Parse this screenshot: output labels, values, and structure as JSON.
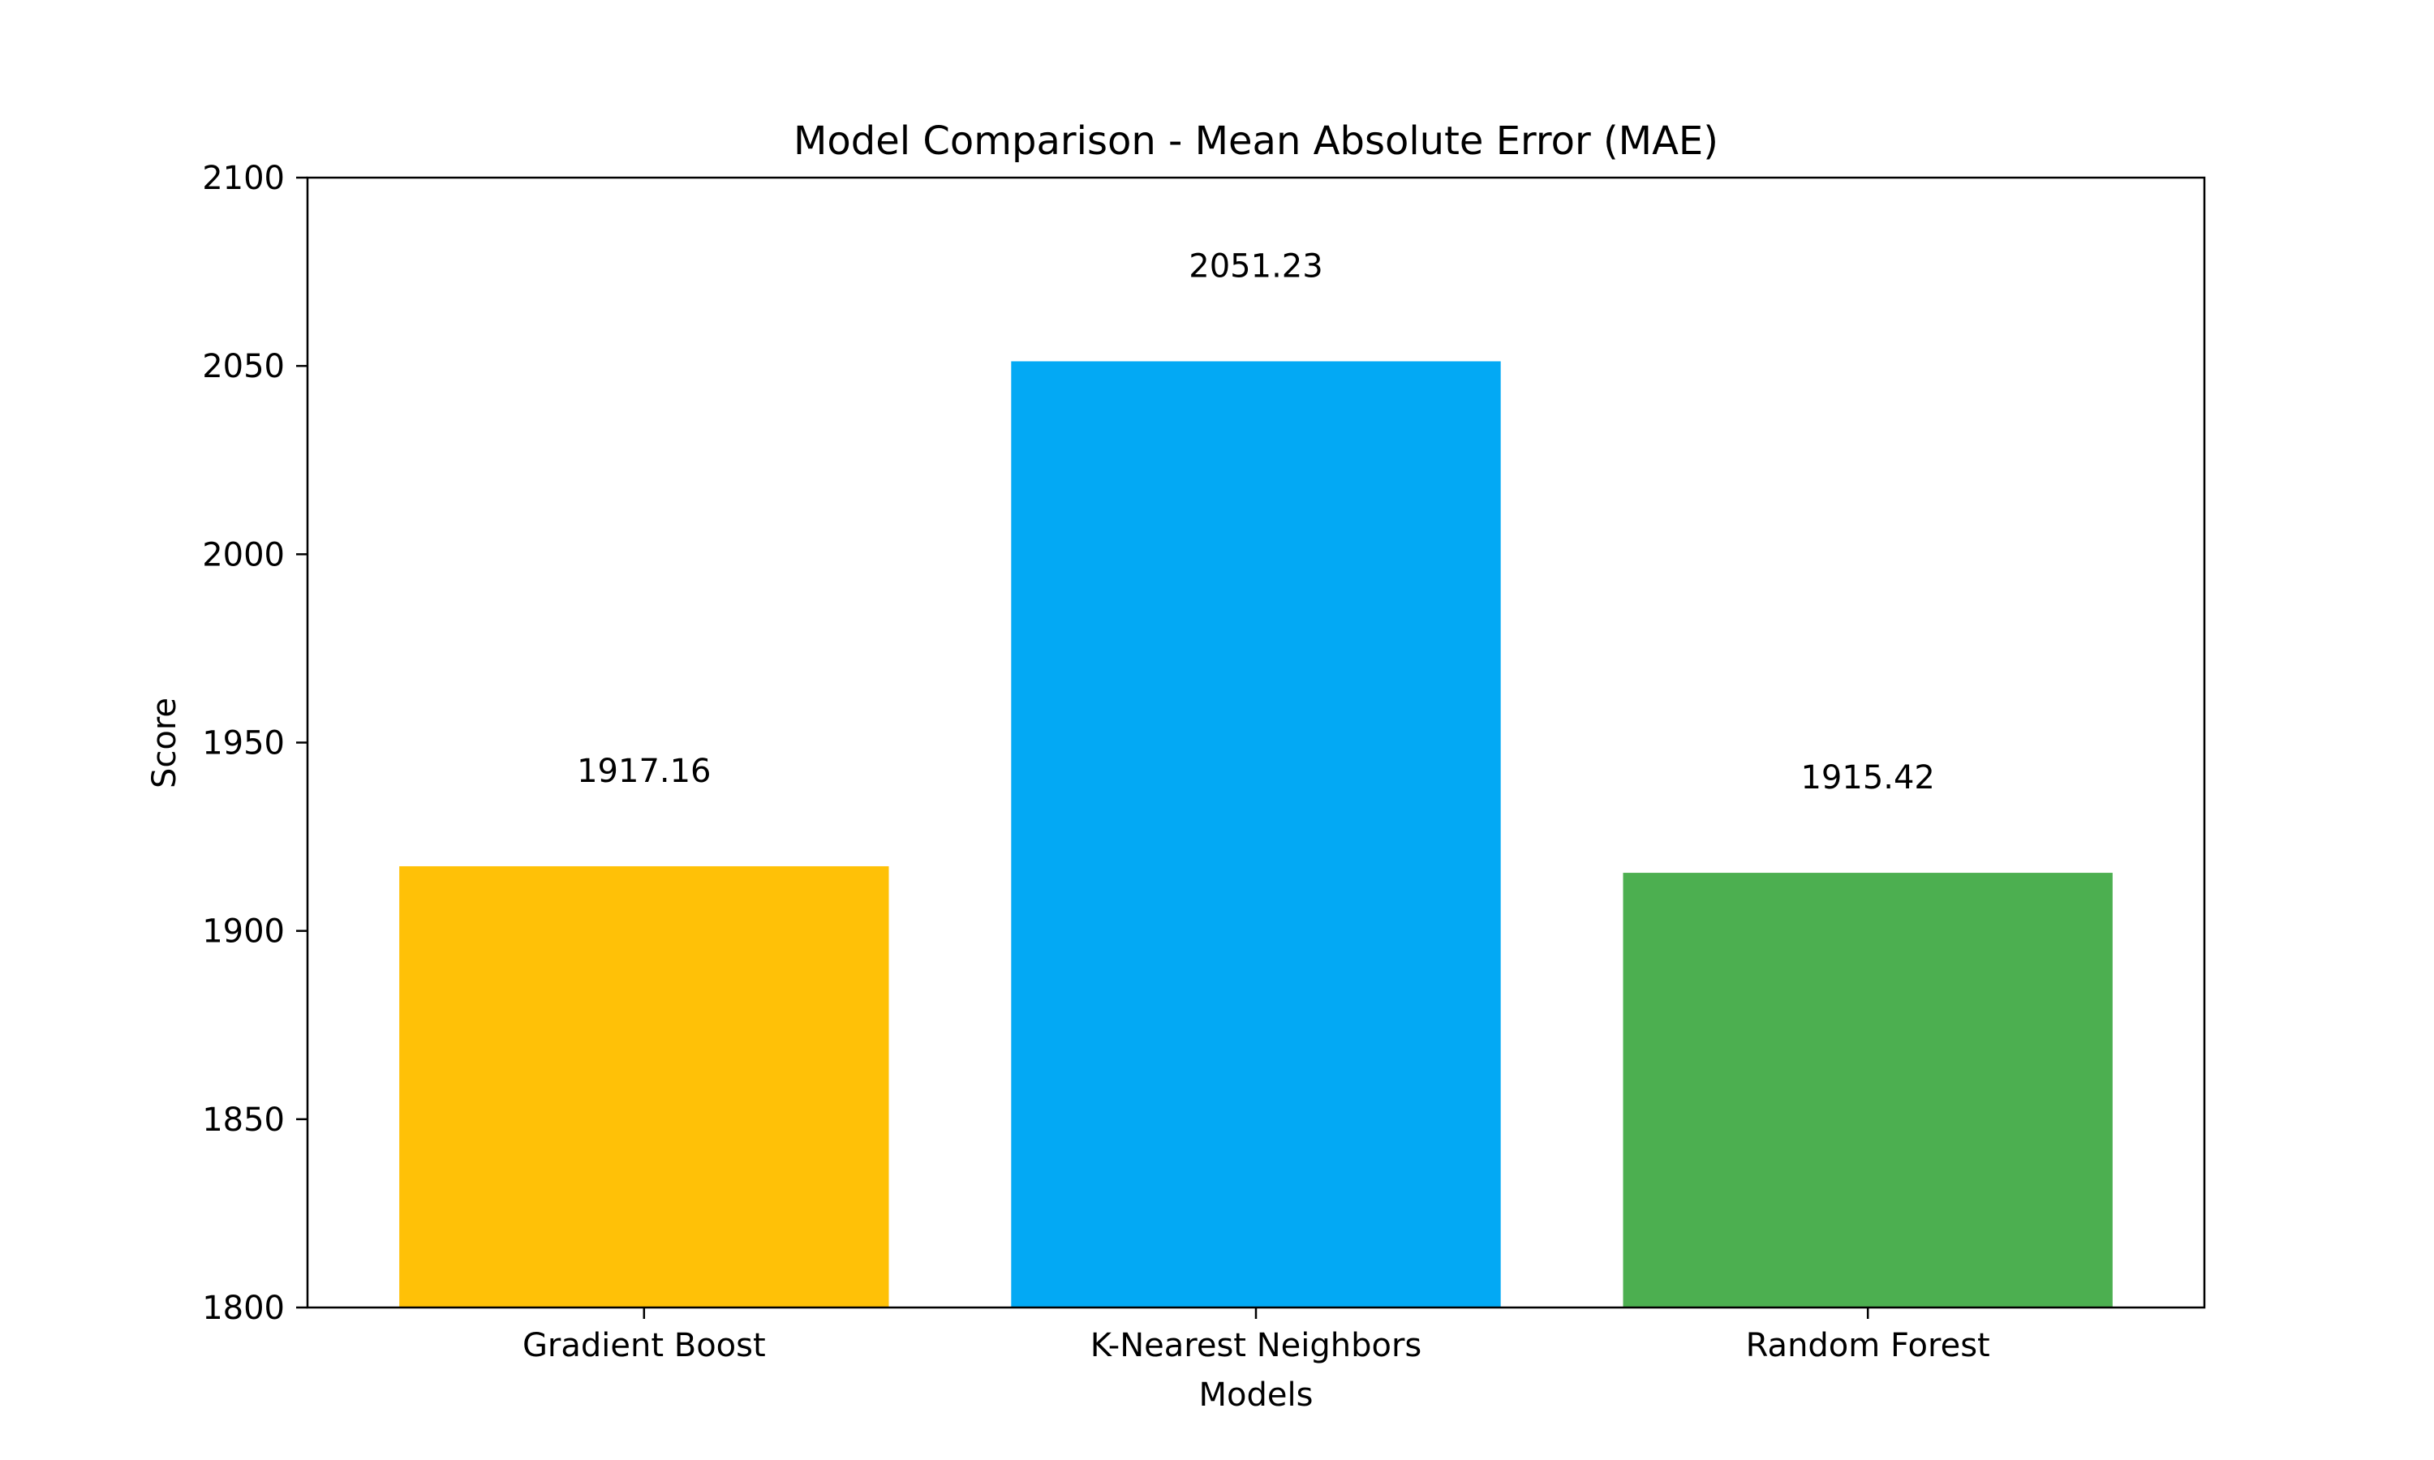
{
  "chart_data": {
    "type": "bar",
    "title": "Model Comparison - Mean Absolute Error (MAE)",
    "xlabel": "Models",
    "ylabel": "Score",
    "categories": [
      "Gradient Boost",
      "K-Nearest Neighbors",
      "Random Forest"
    ],
    "values": [
      1917.16,
      2051.23,
      1915.42
    ],
    "value_labels": [
      "1917.16",
      "2051.23",
      "1915.42"
    ],
    "colors": [
      "#FFC107",
      "#03A9F4",
      "#4CAF50"
    ],
    "ylim": [
      1800,
      2100
    ],
    "yticks": [
      1800,
      1850,
      1900,
      1950,
      2000,
      2050,
      2100
    ],
    "ytick_labels": [
      "1800",
      "1850",
      "1900",
      "1950",
      "2000",
      "2050",
      "2100"
    ],
    "grid": false,
    "legend": "none"
  }
}
